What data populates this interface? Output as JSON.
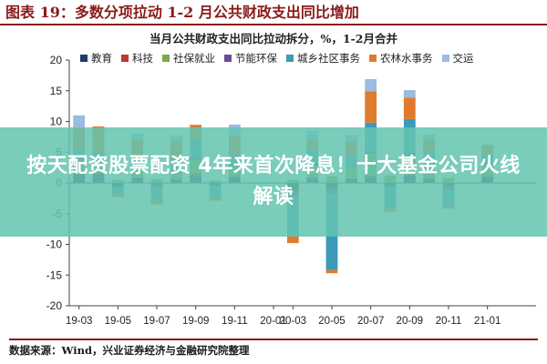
{
  "figure": {
    "title": "图表 19：多数分项拉动 1-2 月公共财政支出同比增加",
    "source": "数据来源：Wind，兴业证券经济与金融研究院整理"
  },
  "overlay": {
    "text": "按天配资股票配资 4年来首次降息！十大基金公司火线解读"
  },
  "colors": {
    "教育": "#1f3a6e",
    "科技": "#c0392b",
    "社保就业": "#7da84a",
    "节能环保": "#6a4a9a",
    "城乡社区事务": "#3a9ab8",
    "农林水事务": "#e07b2e",
    "交运": "#9bbbe0"
  },
  "chart_data": {
    "type": "bar",
    "stacked": true,
    "title": "当月公共财政支出同比拉动拆分，%，1-2月合并",
    "ylim": [
      -20,
      20
    ],
    "yticks": [
      -20,
      -15,
      -10,
      -5,
      0,
      5,
      10,
      15,
      20
    ],
    "x_tick_labels": [
      "19-03",
      "19-05",
      "19-07",
      "19-09",
      "19-11",
      "20-01",
      "20-03",
      "20-05",
      "20-07",
      "20-09",
      "20-11",
      "21-01"
    ],
    "categories": [
      "19-03",
      "19-04",
      "19-05",
      "19-06",
      "19-07",
      "19-08",
      "19-09",
      "19-10",
      "19-11",
      "19-12",
      "20-01",
      "20-03",
      "20-04",
      "20-05",
      "20-06",
      "20-07",
      "20-08",
      "20-09",
      "20-10",
      "20-11",
      "20-12",
      "21-01",
      "21-02",
      "21-03"
    ],
    "series": [
      {
        "name": "教育",
        "values": [
          1.5,
          1.4,
          -0.6,
          0.8,
          -0.4,
          0.5,
          1.3,
          -0.3,
          0.9,
          0,
          0,
          -1.2,
          0.7,
          -1.0,
          0.6,
          0.9,
          -0.4,
          1.2,
          0.6,
          -0.5,
          0,
          1.0,
          0,
          0
        ]
      },
      {
        "name": "科技",
        "values": [
          0.3,
          0.3,
          0,
          0.1,
          0,
          0.2,
          0.3,
          0,
          0.2,
          0,
          0,
          -0.4,
          0.2,
          -0.3,
          0.2,
          0.3,
          0,
          0.3,
          0.2,
          -0.2,
          0,
          0.3,
          0,
          0
        ]
      },
      {
        "name": "社保就业",
        "values": [
          1.8,
          1.9,
          0.5,
          1.5,
          0.6,
          1.2,
          2.2,
          0.4,
          1.6,
          0,
          0,
          0.5,
          2.0,
          1.1,
          1.8,
          3.5,
          1.2,
          3.0,
          1.6,
          0.8,
          0,
          1.7,
          0,
          0
        ]
      },
      {
        "name": "节能环保",
        "values": [
          0.3,
          0.3,
          -0.2,
          0.2,
          -0.2,
          0.2,
          0.4,
          -0.2,
          0.3,
          0,
          0,
          -0.5,
          0.3,
          -0.4,
          0.2,
          0.4,
          -0.3,
          0.4,
          0.3,
          -0.4,
          0,
          0.3,
          0,
          0
        ]
      },
      {
        "name": "城乡社区事务",
        "values": [
          1.6,
          1.0,
          -1.0,
          1.3,
          -2.2,
          1.4,
          3.0,
          -1.8,
          1.5,
          0,
          0,
          -6.5,
          2.1,
          -12.5,
          1.7,
          4.7,
          -3.4,
          5.5,
          2.3,
          -2.5,
          0,
          1.3,
          0,
          0
        ]
      },
      {
        "name": "农林水事务",
        "values": [
          3.3,
          4.3,
          -0.5,
          3.1,
          -0.7,
          3.3,
          2.2,
          -0.6,
          3.2,
          0,
          0,
          -1.2,
          1.8,
          -0.5,
          2.3,
          5.1,
          -0.6,
          3.5,
          2.1,
          -0.6,
          0,
          1.5,
          0,
          0
        ]
      },
      {
        "name": "交运",
        "values": [
          2.2,
          0,
          0,
          1.0,
          0,
          0.8,
          0.1,
          0,
          1.8,
          0,
          0,
          0,
          1.4,
          0,
          1.0,
          2.0,
          0,
          1.2,
          0.8,
          0,
          0,
          0.2,
          0,
          0
        ]
      }
    ]
  }
}
